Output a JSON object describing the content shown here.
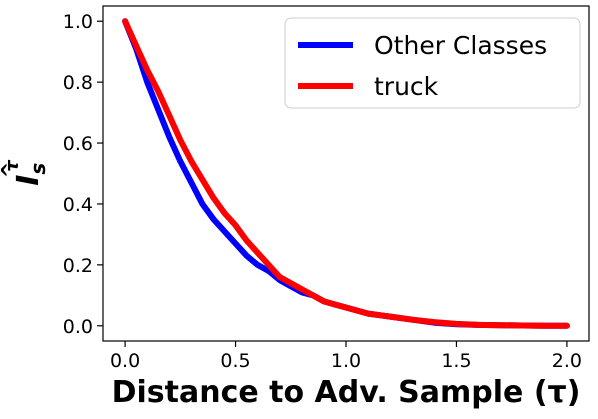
{
  "chart_data": {
    "type": "line",
    "title": "",
    "xlabel": "Distance to Adv. Sample (τ)",
    "ylabel": "I_s^τ",
    "ylabel_main": "I",
    "ylabel_sub": "s",
    "ylabel_sup": "τ",
    "ylabel_hat": "^",
    "xlim": [
      -0.1,
      2.1
    ],
    "ylim": [
      -0.05,
      1.05
    ],
    "xticks": [
      0.0,
      0.5,
      1.0,
      1.5,
      2.0
    ],
    "xtick_labels": [
      "0.0",
      "0.5",
      "1.0",
      "1.5",
      "2.0"
    ],
    "yticks": [
      0.0,
      0.2,
      0.4,
      0.6,
      0.8,
      1.0
    ],
    "ytick_labels": [
      "0.0",
      "0.2",
      "0.4",
      "0.6",
      "0.8",
      "1.0"
    ],
    "grid": false,
    "legend_position": "top-right",
    "series": [
      {
        "name": "Other Classes",
        "color": "#0000ff",
        "x": [
          0.0,
          0.05,
          0.1,
          0.15,
          0.2,
          0.25,
          0.3,
          0.35,
          0.4,
          0.45,
          0.5,
          0.55,
          0.6,
          0.65,
          0.7,
          0.75,
          0.8,
          0.85,
          0.9,
          0.95,
          1.0,
          1.1,
          1.2,
          1.3,
          1.4,
          1.5,
          1.6,
          1.7,
          1.8,
          1.9,
          2.0
        ],
        "y": [
          1.0,
          0.91,
          0.8,
          0.71,
          0.62,
          0.54,
          0.47,
          0.4,
          0.35,
          0.31,
          0.27,
          0.23,
          0.2,
          0.18,
          0.15,
          0.13,
          0.11,
          0.1,
          0.08,
          0.07,
          0.06,
          0.04,
          0.03,
          0.02,
          0.01,
          0.005,
          0.003,
          0.002,
          0.001,
          0.0,
          0.0
        ]
      },
      {
        "name": "truck",
        "color": "#ff0000",
        "x": [
          0.0,
          0.05,
          0.1,
          0.15,
          0.2,
          0.25,
          0.3,
          0.35,
          0.4,
          0.45,
          0.5,
          0.55,
          0.6,
          0.65,
          0.7,
          0.75,
          0.8,
          0.85,
          0.9,
          0.95,
          1.0,
          1.1,
          1.2,
          1.3,
          1.4,
          1.5,
          1.6,
          1.7,
          1.8,
          1.9,
          2.0
        ],
        "y": [
          1.0,
          0.92,
          0.84,
          0.77,
          0.69,
          0.61,
          0.54,
          0.48,
          0.42,
          0.37,
          0.33,
          0.28,
          0.24,
          0.2,
          0.16,
          0.14,
          0.12,
          0.1,
          0.08,
          0.07,
          0.06,
          0.04,
          0.03,
          0.02,
          0.012,
          0.006,
          0.003,
          0.002,
          0.001,
          0.0,
          0.0
        ]
      }
    ]
  }
}
